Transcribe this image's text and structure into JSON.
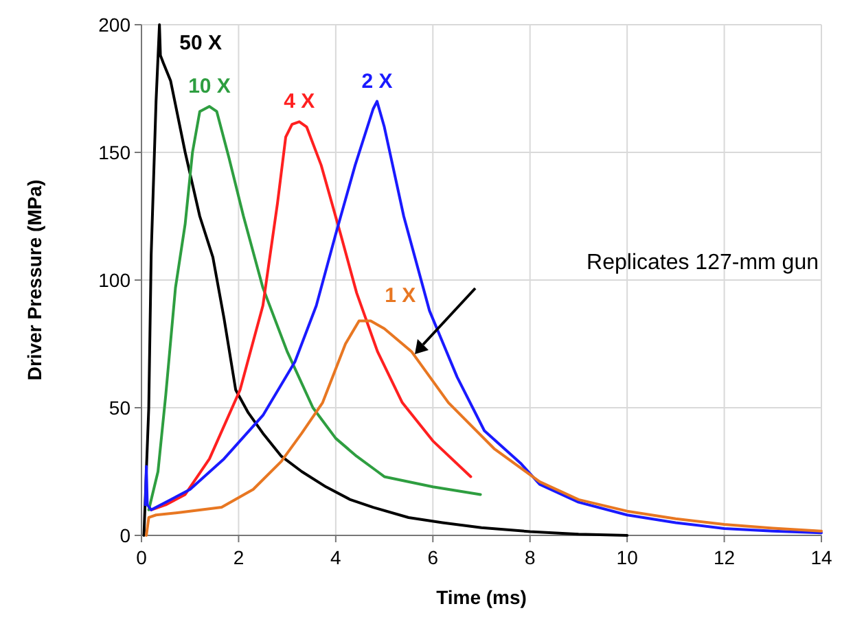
{
  "chart_data": {
    "type": "line",
    "xlabel": "Time (ms)",
    "ylabel": "Driver Pressure (MPa)",
    "xlim": [
      0,
      14
    ],
    "ylim": [
      0,
      200
    ],
    "xticks": [
      0,
      2,
      4,
      6,
      8,
      10,
      12,
      14
    ],
    "yticks": [
      0,
      50,
      100,
      150,
      200
    ],
    "grid": true,
    "marker": "none",
    "line_style": "solid",
    "series": [
      {
        "name": "50 X",
        "color": "#000000",
        "x": [
          0.05,
          0.1,
          0.15,
          0.2,
          0.3,
          0.37,
          0.39,
          0.45,
          0.6,
          0.9,
          1.2,
          1.47,
          1.7,
          1.94,
          2.2,
          2.5,
          2.88,
          3.3,
          3.8,
          4.3,
          4.77,
          5.5,
          6.2,
          7,
          8,
          9,
          10
        ],
        "values": [
          0,
          25,
          50,
          110,
          170,
          200,
          188,
          185,
          178,
          150,
          125,
          109,
          85,
          57,
          48,
          40,
          31,
          25,
          19,
          14,
          11,
          7,
          5,
          3,
          1.5,
          0.5,
          0
        ]
      },
      {
        "name": "10 X",
        "color": "#2e9e40",
        "x": [
          0.15,
          0.34,
          0.5,
          0.7,
          0.9,
          1.05,
          1.2,
          1.4,
          1.55,
          1.8,
          2.1,
          2.5,
          3.0,
          3.53,
          4.0,
          4.43,
          4.86,
          5.0,
          6.0,
          6.98
        ],
        "values": [
          10,
          25,
          55,
          97,
          122,
          150,
          166,
          168,
          166,
          148,
          125,
          97,
          72,
          50,
          38,
          31,
          25,
          23,
          19,
          16
        ]
      },
      {
        "name": "4 X",
        "color": "#ff2020",
        "x": [
          0.2,
          0.5,
          0.9,
          1.4,
          2.03,
          2.5,
          2.8,
          2.97,
          3.1,
          3.25,
          3.4,
          3.7,
          4.1,
          4.43,
          4.86,
          5.37,
          6.0,
          6.78
        ],
        "values": [
          10,
          12,
          16,
          30,
          57,
          90,
          130,
          156,
          161,
          162,
          160,
          145,
          118,
          95,
          72,
          52,
          37,
          23
        ]
      },
      {
        "name": "2 X",
        "color": "#1a1aff",
        "x": [
          0.08,
          0.1,
          0.12,
          0.2,
          0.6,
          1.0,
          1.7,
          2.5,
          3.16,
          3.6,
          4.0,
          4.4,
          4.77,
          4.85,
          5.0,
          5.4,
          5.93,
          6.5,
          7.06,
          7.82,
          8.2,
          9,
          10,
          11,
          12,
          13,
          14
        ],
        "values": [
          12,
          27,
          12,
          10,
          14,
          18,
          30,
          47,
          68,
          90,
          118,
          145,
          167,
          170,
          160,
          125,
          88,
          62,
          41,
          28,
          20,
          13,
          8,
          5,
          2.7,
          1.7,
          1
        ]
      },
      {
        "name": "1 X",
        "color": "#e87722",
        "x": [
          0.1,
          0.15,
          0.3,
          0.8,
          1.65,
          2.3,
          2.88,
          3.3,
          3.73,
          4.2,
          4.48,
          4.72,
          5.0,
          5.56,
          6.32,
          7.26,
          8.2,
          9,
          10,
          11,
          12,
          13,
          14
        ],
        "values": [
          0,
          7,
          8,
          9,
          11,
          18,
          29,
          40,
          52,
          75,
          84,
          84,
          81,
          72,
          52,
          34,
          21,
          14,
          9.5,
          6.5,
          4.3,
          2.8,
          1.7
        ]
      }
    ],
    "annotations": [
      "Replicates 127-mm gun"
    ]
  }
}
